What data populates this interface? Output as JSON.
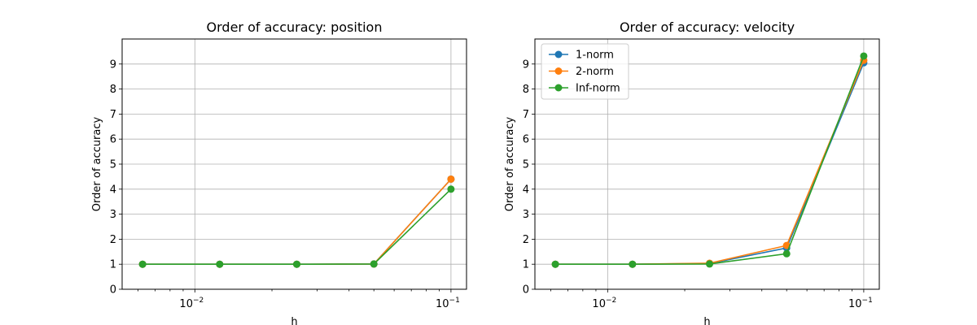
{
  "chart_data": [
    {
      "type": "line",
      "title": "Order of accuracy: position",
      "xlabel": "h",
      "ylabel": "Order of accuracy",
      "xscale": "log",
      "xlim": [
        0.0052,
        0.115
      ],
      "ylim": [
        0,
        10
      ],
      "grid": true,
      "legend": null,
      "x": [
        0.00625,
        0.0125,
        0.025,
        0.05,
        0.1
      ],
      "xticks": [
        {
          "value": 0.01,
          "base": "10",
          "exp": "−2"
        },
        {
          "value": 0.1,
          "base": "10",
          "exp": "−1"
        }
      ],
      "yticks": [
        "0",
        "1",
        "2",
        "3",
        "4",
        "5",
        "6",
        "7",
        "8",
        "9"
      ],
      "series": [
        {
          "color": "#1f77b4",
          "values": [
            1.0,
            1.0,
            1.0,
            1.01,
            4.4
          ]
        },
        {
          "color": "#ff7f0e",
          "values": [
            1.0,
            1.0,
            1.0,
            1.01,
            4.4
          ]
        },
        {
          "color": "#2ca02c",
          "values": [
            1.0,
            1.0,
            1.0,
            1.01,
            4.0
          ]
        }
      ]
    },
    {
      "type": "line",
      "title": "Order of accuracy: velocity",
      "xlabel": "h",
      "ylabel": "Order of accuracy",
      "xscale": "log",
      "xlim": [
        0.0052,
        0.115
      ],
      "ylim": [
        0,
        10
      ],
      "grid": true,
      "legend": "top-left",
      "x": [
        0.00625,
        0.0125,
        0.025,
        0.05,
        0.1
      ],
      "xticks": [
        {
          "value": 0.01,
          "base": "10",
          "exp": "−2"
        },
        {
          "value": 0.1,
          "base": "10",
          "exp": "−1"
        }
      ],
      "yticks": [
        "0",
        "1",
        "2",
        "3",
        "4",
        "5",
        "6",
        "7",
        "8",
        "9"
      ],
      "series": [
        {
          "name": "1-norm",
          "color": "#1f77b4",
          "values": [
            1.0,
            1.0,
            1.03,
            1.65,
            9.05
          ]
        },
        {
          "name": "2-norm",
          "color": "#ff7f0e",
          "values": [
            1.0,
            1.0,
            1.04,
            1.75,
            9.15
          ]
        },
        {
          "name": "Inf-norm",
          "color": "#2ca02c",
          "values": [
            1.0,
            1.0,
            1.01,
            1.42,
            9.32
          ]
        }
      ]
    }
  ]
}
